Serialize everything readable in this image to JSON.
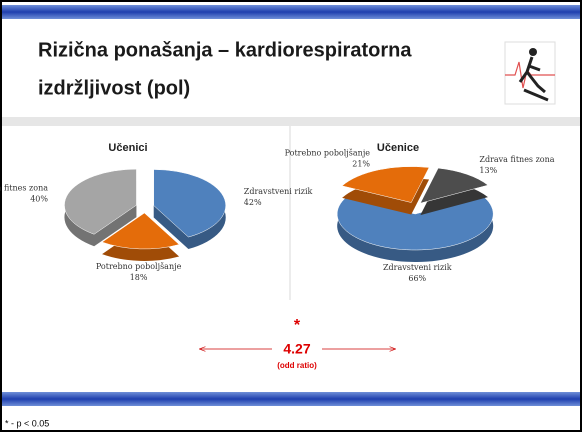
{
  "slide": {
    "title_line1": "Rizična ponašanja – kardiorespiratorna",
    "title_line2": "izdržljivost (pol)",
    "significance": "*",
    "odds_ratio": 4.27,
    "odds_ratio_label": "(odd ratio)",
    "footnote": "* - p < 0.05"
  },
  "chart_data": [
    {
      "type": "pie",
      "title": "Učenici",
      "categories": [
        "Zdravstveni rizik",
        "Potrebno poboljšanje",
        "Zdrava fitnes zona"
      ],
      "values": [
        42,
        18,
        40
      ],
      "value_labels": [
        "42%",
        "18%",
        "40%"
      ],
      "colors": [
        "#4f81bd",
        "#e46c0a",
        "#a5a5a5"
      ]
    },
    {
      "type": "pie",
      "title": "Učenice",
      "categories": [
        "Zdravstveni rizik",
        "Potrebno poboljšanje",
        "Zdrava fitnes zona"
      ],
      "values": [
        66,
        21,
        13
      ],
      "value_labels": [
        "66%",
        "21%",
        "13%"
      ],
      "colors": [
        "#4f81bd",
        "#e46c0a",
        "#4d4d4d"
      ]
    }
  ]
}
